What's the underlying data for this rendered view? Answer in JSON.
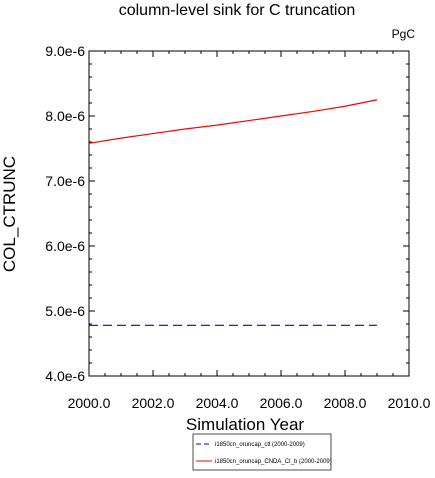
{
  "chart_data": {
    "type": "line",
    "title": "column-level sink for C truncation",
    "units": "PgC",
    "xlabel": "Simulation Year",
    "ylabel": "COL_CTRUNC",
    "xlim": [
      2000.0,
      2010.0
    ],
    "ylim": [
      4e-06,
      9e-06
    ],
    "xticks": [
      2000.0,
      2002.0,
      2004.0,
      2006.0,
      2008.0,
      2010.0
    ],
    "xtick_labels": [
      "2000.0",
      "2002.0",
      "2004.0",
      "2006.0",
      "2008.0",
      "2010.0"
    ],
    "yticks": [
      4e-06,
      5e-06,
      6e-06,
      7e-06,
      8e-06,
      9e-06
    ],
    "ytick_labels": [
      "4.0e-6",
      "5.0e-6",
      "6.0e-6",
      "7.0e-6",
      "8.0e-6",
      "9.0e-6"
    ],
    "grid": false,
    "legend_position": "bottom-center",
    "series": [
      {
        "name": "i1850cn_oruncap_ctl (2000-2009)",
        "color": "#0000ff",
        "style": "dashed",
        "x": [
          2000.0,
          2009.0
        ],
        "y": [
          4.78e-06,
          4.78e-06
        ]
      },
      {
        "name": "i1850cn_oruncap_CNDA_CI_b (2000-2009)",
        "color": "#ff0000",
        "style": "solid",
        "x": [
          2000.0,
          2001.0,
          2002.0,
          2003.0,
          2004.0,
          2005.0,
          2006.0,
          2007.0,
          2008.0,
          2009.0
        ],
        "y": [
          7.58e-06,
          7.66e-06,
          7.73e-06,
          7.8e-06,
          7.86e-06,
          7.93e-06,
          8e-06,
          8.07e-06,
          8.15e-06,
          8.25e-06
        ]
      }
    ]
  }
}
